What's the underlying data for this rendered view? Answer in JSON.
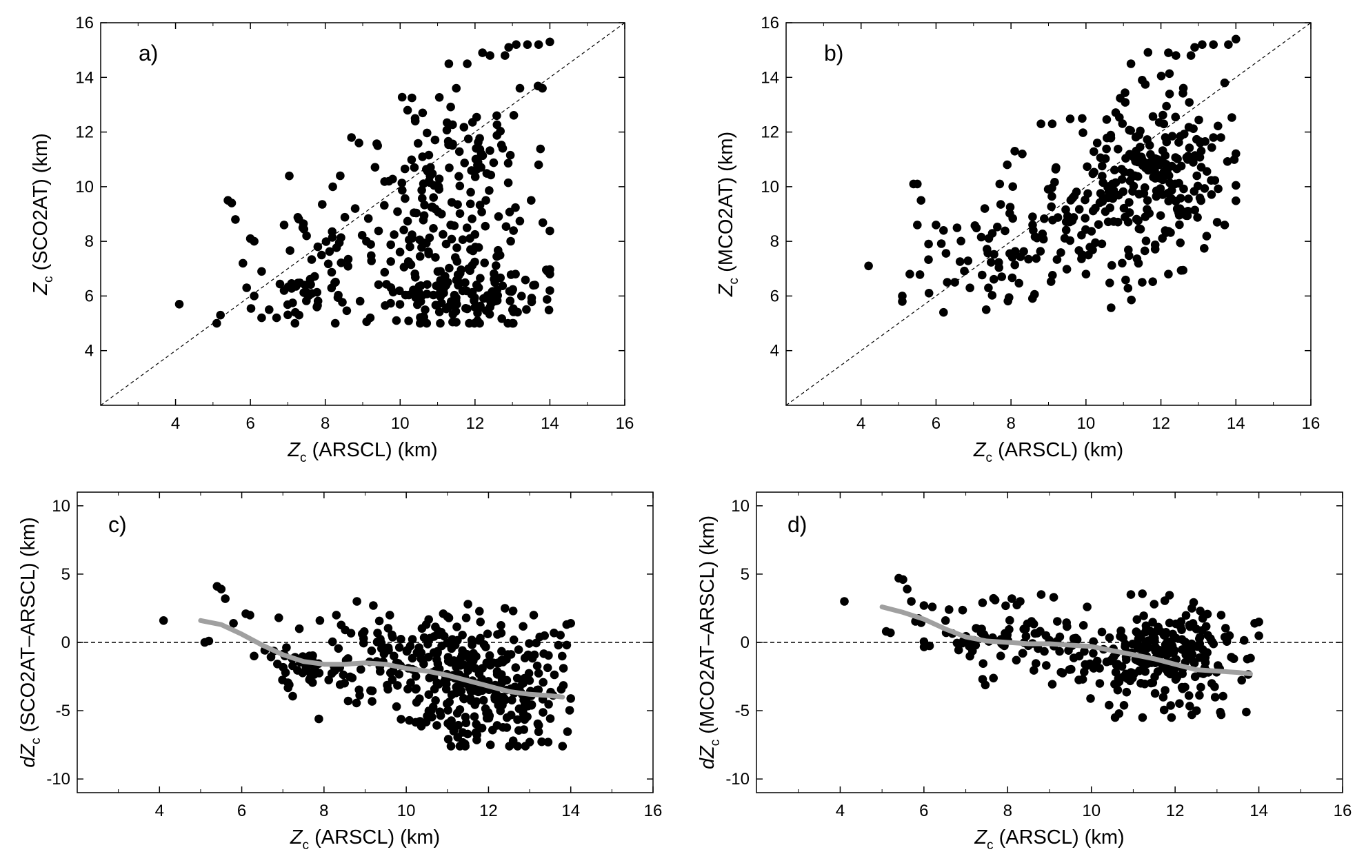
{
  "figure": {
    "chart_data": [
      {
        "type": "scatter",
        "panel_label": "a)",
        "xlabel": {
          "sym": "Z",
          "sub": "c",
          "rest": "(ARSCL) (km)"
        },
        "ylabel": {
          "pre": "",
          "sym": "Z",
          "sub": "c",
          "rest": "(SCO2AT) (km)"
        },
        "xlim": [
          2,
          16
        ],
        "ylim": [
          2,
          16
        ],
        "xticks": [
          4,
          6,
          8,
          10,
          12,
          14,
          16
        ],
        "yticks": [
          4,
          6,
          8,
          10,
          12,
          14,
          16
        ],
        "ref_line": "diagonal",
        "point_color": "#000000",
        "seed": 11,
        "points": [
          [
            4.1,
            5.7
          ],
          [
            5.1,
            5.0
          ],
          [
            5.2,
            5.3
          ],
          [
            5.4,
            9.5
          ],
          [
            5.5,
            9.4
          ],
          [
            5.6,
            8.8
          ],
          [
            5.8,
            7.2
          ],
          [
            5.9,
            6.3
          ],
          [
            6.0,
            8.1
          ],
          [
            6.1,
            8.0
          ],
          [
            6.1,
            6.0
          ],
          [
            6.3,
            5.2
          ],
          [
            6.3,
            6.9
          ],
          [
            6.5,
            5.5
          ],
          [
            6.7,
            5.2
          ],
          [
            6.9,
            8.6
          ],
          [
            6.9,
            6.2
          ],
          [
            7.2,
            5.4
          ],
          [
            7.3,
            5.3
          ],
          [
            7.4,
            8.5
          ],
          [
            7.5,
            8.2
          ],
          [
            7.8,
            7.8
          ],
          [
            7.9,
            7.5
          ],
          [
            8.2,
            10.0
          ],
          [
            8.4,
            10.4
          ],
          [
            8.7,
            11.8
          ],
          [
            8.9,
            11.6
          ],
          [
            8.8,
            9.2
          ],
          [
            9.1,
            8.0
          ],
          [
            9.2,
            5.2
          ],
          [
            9.4,
            11.5
          ],
          [
            9.7,
            10.2
          ],
          [
            9.9,
            5.1
          ],
          [
            10.2,
            12.8
          ],
          [
            10.4,
            12.5
          ],
          [
            10.6,
            12.7
          ],
          [
            10.8,
            10.4
          ],
          [
            11.3,
            14.5
          ],
          [
            11.5,
            13.6
          ],
          [
            12.2,
            14.9
          ],
          [
            12.4,
            14.8
          ],
          [
            12.8,
            14.8
          ],
          [
            12.9,
            15.1
          ],
          [
            13.1,
            15.2
          ],
          [
            13.4,
            15.2
          ],
          [
            13.7,
            15.2
          ],
          [
            13.8,
            13.6
          ],
          [
            14.0,
            15.3
          ],
          [
            13.2,
            13.6
          ],
          [
            13.7,
            10.8
          ],
          [
            13.5,
            9.5
          ],
          [
            14.0,
            6.2
          ],
          [
            13.6,
            6.4
          ],
          [
            13.0,
            5.0
          ]
        ],
        "clusters": [
          {
            "cx": 11.6,
            "sx": 0.9,
            "cy": 11.5,
            "sy": 1.1,
            "n": 70
          },
          {
            "cx": 11.3,
            "sx": 1.2,
            "cy": 8.2,
            "sy": 1.3,
            "n": 100
          },
          {
            "cx": 11.8,
            "sx": 1.0,
            "cy": 6.0,
            "sy": 0.55,
            "n": 120
          },
          {
            "cx": 9.0,
            "sx": 1.1,
            "cy": 7.2,
            "sy": 1.1,
            "n": 50
          },
          {
            "cx": 7.6,
            "sx": 0.7,
            "cy": 5.9,
            "sy": 0.45,
            "n": 25
          }
        ],
        "xrange": [
          4.0,
          14.0
        ],
        "yrange": [
          5.0,
          15.3
        ]
      },
      {
        "type": "scatter",
        "panel_label": "b)",
        "xlabel": {
          "sym": "Z",
          "sub": "c",
          "rest": "(ARSCL) (km)"
        },
        "ylabel": {
          "pre": "",
          "sym": "Z",
          "sub": "c",
          "rest": "(MCO2AT) (km)"
        },
        "xlim": [
          2,
          16
        ],
        "ylim": [
          2,
          16
        ],
        "xticks": [
          4,
          6,
          8,
          10,
          12,
          14,
          16
        ],
        "yticks": [
          4,
          6,
          8,
          10,
          12,
          14,
          16
        ],
        "ref_line": "diagonal",
        "point_color": "#000000",
        "seed": 23,
        "points": [
          [
            4.2,
            7.1
          ],
          [
            5.1,
            5.8
          ],
          [
            5.1,
            6.0
          ],
          [
            5.3,
            6.8
          ],
          [
            5.4,
            10.1
          ],
          [
            5.5,
            10.1
          ],
          [
            5.6,
            9.5
          ],
          [
            5.5,
            8.6
          ],
          [
            5.8,
            7.9
          ],
          [
            6.0,
            8.6
          ],
          [
            6.2,
            8.4
          ],
          [
            6.2,
            5.4
          ],
          [
            6.3,
            6.5
          ],
          [
            6.5,
            6.5
          ],
          [
            7.3,
            9.2
          ],
          [
            7.7,
            10.1
          ],
          [
            7.9,
            10.8
          ],
          [
            8.1,
            11.3
          ],
          [
            8.3,
            11.2
          ],
          [
            8.8,
            12.3
          ],
          [
            9.1,
            12.3
          ],
          [
            9.2,
            10.7
          ],
          [
            9.9,
            12.5
          ],
          [
            10.0,
            6.8
          ],
          [
            10.3,
            11.6
          ],
          [
            11.2,
            14.5
          ],
          [
            11.5,
            13.9
          ],
          [
            12.2,
            14.9
          ],
          [
            12.4,
            14.8
          ],
          [
            12.8,
            14.8
          ],
          [
            12.9,
            15.1
          ],
          [
            13.1,
            15.2
          ],
          [
            13.4,
            15.2
          ],
          [
            13.8,
            15.2
          ],
          [
            14.0,
            15.4
          ],
          [
            13.7,
            13.8
          ],
          [
            13.4,
            11.8
          ],
          [
            13.6,
            11.8
          ],
          [
            13.5,
            8.7
          ],
          [
            13.7,
            8.6
          ],
          [
            12.2,
            6.8
          ],
          [
            11.5,
            6.5
          ]
        ],
        "clusters": [
          {
            "cx": 11.7,
            "sx": 1.0,
            "cy": 10.3,
            "sy": 1.5,
            "n": 230
          },
          {
            "cx": 9.5,
            "sx": 1.0,
            "cy": 8.6,
            "sy": 1.1,
            "n": 60
          },
          {
            "cx": 7.6,
            "sx": 0.8,
            "cy": 7.3,
            "sy": 0.9,
            "n": 45
          }
        ],
        "xrange": [
          4.0,
          14.0
        ],
        "yrange": [
          5.5,
          15.4
        ]
      },
      {
        "type": "scatter",
        "panel_label": "c)",
        "xlabel": {
          "sym": "Z",
          "sub": "c",
          "rest": "(ARSCL) (km)"
        },
        "ylabel": {
          "pre": "d",
          "sym": "Z",
          "sub": "c",
          "rest": "(SCO2AT–ARSCL) (km)"
        },
        "xlim": [
          2,
          16
        ],
        "ylim": [
          -11,
          11
        ],
        "xticks": [
          4,
          6,
          8,
          10,
          12,
          14,
          16
        ],
        "yticks": [
          -10,
          -5,
          0,
          5,
          10
        ],
        "ref_line": "zero",
        "point_color": "#000000",
        "seed": 37,
        "points": [
          [
            4.1,
            1.6
          ],
          [
            5.1,
            0.0
          ],
          [
            5.2,
            0.1
          ],
          [
            5.4,
            4.1
          ],
          [
            5.5,
            3.9
          ],
          [
            5.6,
            3.2
          ],
          [
            5.8,
            1.4
          ],
          [
            6.1,
            2.1
          ],
          [
            6.2,
            2.0
          ],
          [
            6.3,
            -1.0
          ],
          [
            6.9,
            1.8
          ],
          [
            7.4,
            1.0
          ],
          [
            7.9,
            1.6
          ],
          [
            8.3,
            2.0
          ],
          [
            8.8,
            3.0
          ],
          [
            9.2,
            2.7
          ],
          [
            9.6,
            2.0
          ],
          [
            10.9,
            2.1
          ],
          [
            11.5,
            2.8
          ],
          [
            12.4,
            2.5
          ],
          [
            12.6,
            2.3
          ],
          [
            13.1,
            2.0
          ],
          [
            13.8,
            -7.6
          ],
          [
            13.9,
            1.3
          ],
          [
            14.0,
            1.4
          ],
          [
            13.7,
            -0.2
          ],
          [
            13.0,
            -7.3
          ],
          [
            12.6,
            -7.2
          ]
        ],
        "clusters": [
          {
            "cx": 11.8,
            "sx": 0.95,
            "cy": -4.2,
            "sy": 1.8,
            "n": 200
          },
          {
            "cx": 11.4,
            "sx": 1.1,
            "cy": -0.5,
            "sy": 1.3,
            "n": 120
          },
          {
            "cx": 9.3,
            "sx": 1.0,
            "cy": -1.5,
            "sy": 1.4,
            "n": 60
          },
          {
            "cx": 7.6,
            "sx": 0.8,
            "cy": -1.4,
            "sy": 1.0,
            "n": 35
          }
        ],
        "xrange": [
          4.0,
          14.0
        ],
        "yrange": [
          -7.6,
          4.1
        ],
        "trend": {
          "name": "",
          "color": "#a0a0a0",
          "x": [
            5.0,
            5.5,
            6.0,
            6.5,
            7.0,
            7.5,
            8.0,
            8.5,
            9.0,
            9.5,
            10.0,
            10.5,
            11.0,
            11.5,
            12.0,
            12.5,
            13.0,
            13.5,
            13.8
          ],
          "y": [
            1.6,
            1.3,
            0.6,
            -0.2,
            -0.9,
            -1.4,
            -1.6,
            -1.6,
            -1.5,
            -1.6,
            -1.9,
            -2.1,
            -2.4,
            -2.8,
            -3.2,
            -3.6,
            -3.8,
            -3.9,
            -4.0
          ]
        }
      },
      {
        "type": "scatter",
        "panel_label": "d)",
        "xlabel": {
          "sym": "Z",
          "sub": "c",
          "rest": "(ARSCL) (km)"
        },
        "ylabel": {
          "pre": "d",
          "sym": "Z",
          "sub": "c",
          "rest": "(MCO2AT–ARSCL) (km)"
        },
        "xlim": [
          2,
          16
        ],
        "ylim": [
          -11,
          11
        ],
        "xticks": [
          4,
          6,
          8,
          10,
          12,
          14,
          16
        ],
        "yticks": [
          -10,
          -5,
          0,
          5,
          10
        ],
        "ref_line": "zero",
        "point_color": "#000000",
        "seed": 53,
        "points": [
          [
            4.1,
            3.0
          ],
          [
            5.1,
            0.8
          ],
          [
            5.2,
            0.7
          ],
          [
            5.4,
            4.7
          ],
          [
            5.5,
            4.6
          ],
          [
            5.6,
            3.9
          ],
          [
            5.7,
            3.0
          ],
          [
            6.0,
            2.7
          ],
          [
            6.2,
            2.6
          ],
          [
            6.6,
            2.4
          ],
          [
            7.4,
            2.9
          ],
          [
            7.7,
            3.1
          ],
          [
            8.1,
            3.2
          ],
          [
            8.3,
            3.0
          ],
          [
            8.8,
            3.5
          ],
          [
            9.1,
            3.3
          ],
          [
            9.9,
            2.6
          ],
          [
            10.2,
            -3.0
          ],
          [
            11.5,
            2.8
          ],
          [
            12.4,
            2.5
          ],
          [
            12.6,
            2.3
          ],
          [
            13.1,
            2.0
          ],
          [
            13.7,
            -5.1
          ],
          [
            13.9,
            1.4
          ],
          [
            14.0,
            1.5
          ],
          [
            13.1,
            -5.3
          ],
          [
            12.4,
            -5.3
          ]
        ],
        "clusters": [
          {
            "cx": 11.8,
            "sx": 0.95,
            "cy": -1.2,
            "sy": 1.9,
            "n": 230
          },
          {
            "cx": 9.4,
            "sx": 1.0,
            "cy": -0.5,
            "sy": 1.2,
            "n": 60
          },
          {
            "cx": 7.4,
            "sx": 0.8,
            "cy": 0.2,
            "sy": 1.1,
            "n": 45
          }
        ],
        "xrange": [
          4.0,
          14.0
        ],
        "yrange": [
          -5.5,
          4.7
        ],
        "trend": {
          "name": "",
          "color": "#a0a0a0",
          "x": [
            5.0,
            5.5,
            6.0,
            6.5,
            7.0,
            7.5,
            8.0,
            8.5,
            9.0,
            9.5,
            10.0,
            10.5,
            11.0,
            11.5,
            12.0,
            12.5,
            13.0,
            13.5,
            13.8
          ],
          "y": [
            2.6,
            2.2,
            1.7,
            1.0,
            0.4,
            0.1,
            0.0,
            -0.1,
            -0.1,
            -0.2,
            -0.3,
            -0.6,
            -0.9,
            -1.2,
            -1.6,
            -2.0,
            -2.1,
            -2.2,
            -2.3
          ]
        }
      }
    ]
  }
}
